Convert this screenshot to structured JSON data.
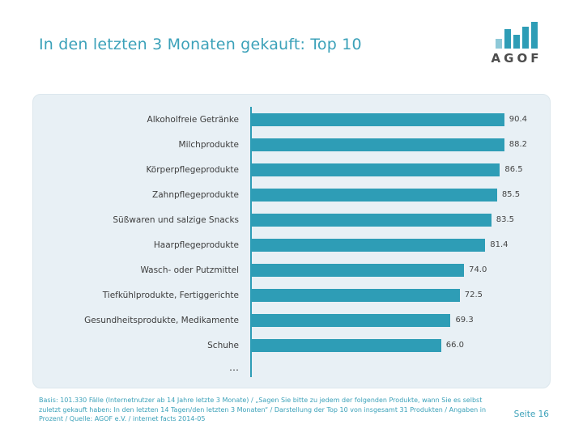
{
  "slide": {
    "title": "In den letzten 3 Monaten gekauft: Top 10",
    "page_number": "Seite 16"
  },
  "logo": {
    "text": "AGOF"
  },
  "chart_data": {
    "type": "bar",
    "orientation": "horizontal",
    "categories": [
      "Alkoholfreie Getränke",
      "Milchprodukte",
      "Körperpflegeprodukte",
      "Zahnpflegeprodukte",
      "Süßwaren und salzige Snacks",
      "Haarpflegeprodukte",
      "Wasch- oder Putzmittel",
      "Tiefkühlprodukte, Fertiggerichte",
      "Gesundheitsprodukte, Medikamente",
      "Schuhe"
    ],
    "values": [
      90.4,
      88.2,
      86.5,
      85.5,
      83.5,
      81.4,
      74.0,
      72.5,
      69.3,
      66.0
    ],
    "value_labels": [
      "90.4",
      "88.2",
      "86.5",
      "85.5",
      "83.5",
      "81.4",
      "74.0",
      "72.5",
      "69.3",
      "66.0"
    ],
    "more_indicator": "…",
    "xlim": [
      0,
      96
    ],
    "bar_color": "#2e9db6",
    "grid": false,
    "legend": "none"
  },
  "footer": {
    "text": "Basis: 101.330 Fälle (Internetnutzer ab 14 Jahre letzte 3 Monate) / „Sagen Sie bitte zu jedem der folgenden Produkte, wann Sie es selbst zuletzt gekauft haben: In den letzten 14 Tagen/den letzten 3 Monaten“ / Darstellung der Top 10 von insgesamt 31 Produkten / Angaben in Prozent / Quelle: AGOF e.V. / internet facts 2014-05"
  },
  "colors": {
    "accent_teal": "#2e9db6",
    "panel_background": "#e8f0f5",
    "text_dark": "#3c3c3c"
  }
}
